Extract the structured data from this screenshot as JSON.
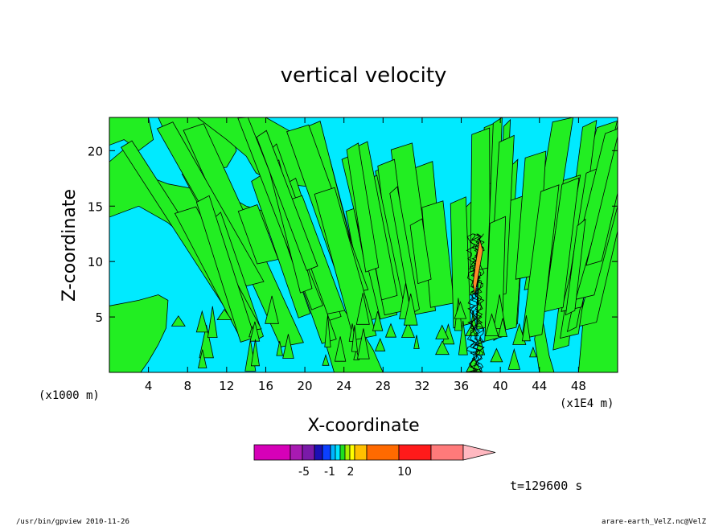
{
  "chart_data": {
    "type": "heatmap",
    "title": "vertical velocity",
    "xlabel": "X-coordinate",
    "ylabel": "Z-coordinate",
    "x_unit_left": "(x1000 m)",
    "x_unit_right": "(x1E4 m)",
    "xlim": [
      0,
      52
    ],
    "ylim": [
      0,
      23
    ],
    "xticks": [
      4,
      8,
      12,
      16,
      20,
      24,
      28,
      32,
      36,
      40,
      44,
      48
    ],
    "yticks": [
      5,
      10,
      15,
      20
    ],
    "colorbar": {
      "colors": [
        "#d600b8",
        "#a81ab2",
        "#7a1aa8",
        "#1b10b5",
        "#0b40ff",
        "#00b4ff",
        "#00e6ff",
        "#1ee01e",
        "#a8f000",
        "#ffff00",
        "#ffc000",
        "#ff6a00",
        "#ff1a1a",
        "#ff7a7a",
        "#ffb8c0"
      ],
      "labels": [
        "-5",
        "-1",
        "2",
        "10"
      ]
    },
    "background_color": "#00eaff",
    "positive_color": "#22ee22",
    "contour_color": "#000000",
    "time_label": "t=129600 s",
    "footer_left": "/usr/bin/gpview  2010-11-26",
    "footer_right": "arare-earth_VelZ.nc@VelZ"
  }
}
